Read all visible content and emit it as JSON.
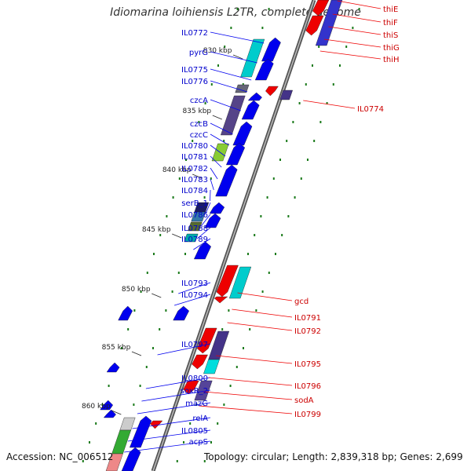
{
  "title": "Idiomarina loihiensis L2TR, complete genome",
  "footer": {
    "accession": "Accession: NC_006512",
    "summary": "Topology: circular; Length: 2,839,318 bp; Genes: 2,699"
  },
  "colors": {
    "forward": "#0000ee",
    "reverse": "#ee0000",
    "backbone": "#7f7f7f",
    "tick": "#1a7a1a"
  },
  "kbp_labels": [
    "830 kbp",
    "835 kbp",
    "840 kbp",
    "845 kbp",
    "850 kbp",
    "855 kbp",
    "860 kbp"
  ],
  "left_genes": [
    "IL0772",
    "pyrG",
    "IL0775",
    "IL0776",
    "czcA",
    "czcB",
    "czcC",
    "IL0780",
    "IL0781",
    "IL0782",
    "IL0783",
    "IL0784",
    "serB_1",
    "IL0786",
    "IL0788",
    "IL0789",
    "IL0793",
    "IL0794",
    "IL0797",
    "IL0800",
    "soxR_2",
    "mazG",
    "relA",
    "IL0805",
    "acpS"
  ],
  "right_genes": [
    "thiE",
    "thiF",
    "thiS",
    "thiG",
    "thiH",
    "IL0774",
    "gcd",
    "IL0791",
    "IL0792",
    "IL0795",
    "IL0796",
    "sodA",
    "IL0799"
  ]
}
